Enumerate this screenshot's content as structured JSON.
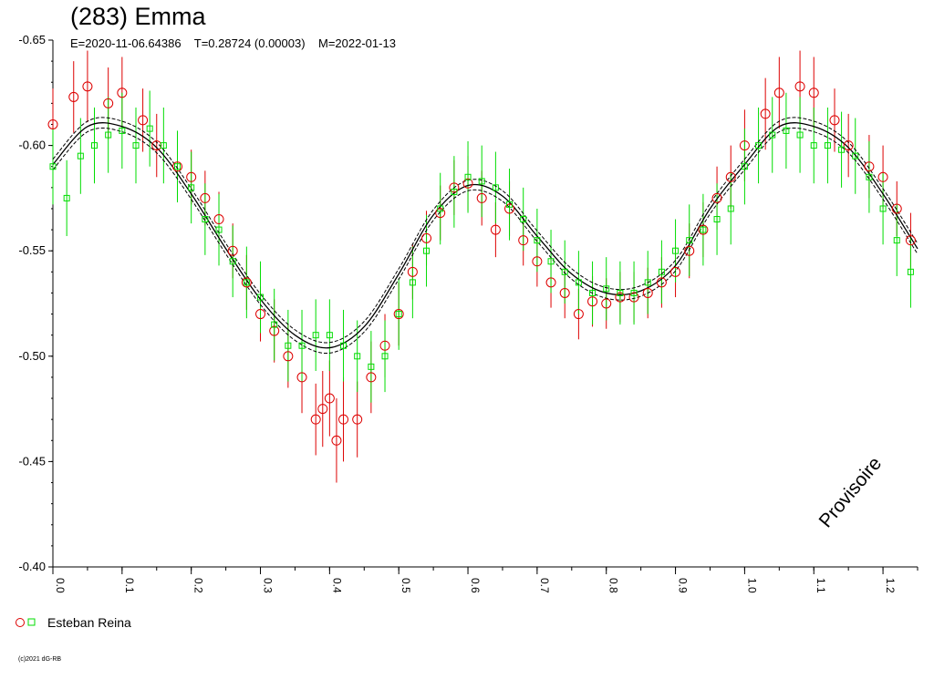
{
  "title": "(283) Emma",
  "subtitle": "E=2020-11-06.64386    T=0.28724 (0.00003)    M=2022-01-13",
  "watermark": "Provisoire",
  "copyright": "(c)2021 dG-RB",
  "colors": {
    "observer_a": "#dd0000",
    "observer_b": "#00dd00",
    "fit": "#000000"
  },
  "chart_data": {
    "type": "scatter",
    "title": "(283) Emma",
    "xlabel": "",
    "ylabel": "",
    "xlim": [
      0,
      1.25
    ],
    "ylim": [
      -0.65,
      -0.4
    ],
    "x_ticks": [
      0.0,
      0.1,
      0.2,
      0.3,
      0.4,
      0.5,
      0.6,
      0.7,
      0.8,
      0.9,
      1.0,
      1.1,
      1.2
    ],
    "x_tick_labels": [
      "0.0",
      "0.1",
      "0.2",
      "0.3",
      "0.4",
      "0.5",
      "0.6",
      "0.7",
      "0.8",
      "0.9",
      "1.0",
      "1.1",
      "1.2"
    ],
    "y_ticks": [
      -0.65,
      -0.6,
      -0.55,
      -0.5,
      -0.45,
      -0.4
    ],
    "y_tick_labels": [
      "-0.65",
      "-0.60",
      "-0.55",
      "-0.50",
      "-0.45",
      "-0.40"
    ],
    "grid": false,
    "legend": {
      "position": "bottom-left",
      "label": "Esteban Reina"
    },
    "period_phase": 1.0,
    "fit_curve": {
      "x": [
        0.0,
        0.05,
        0.1,
        0.15,
        0.2,
        0.25,
        0.3,
        0.35,
        0.4,
        0.45,
        0.5,
        0.55,
        0.6,
        0.65,
        0.7,
        0.75,
        0.8,
        0.85,
        0.9,
        0.95,
        1.0,
        1.05,
        1.1,
        1.15,
        1.2,
        1.25
      ],
      "y": [
        -0.591,
        -0.609,
        -0.609,
        -0.599,
        -0.577,
        -0.551,
        -0.527,
        -0.51,
        -0.504,
        -0.514,
        -0.539,
        -0.567,
        -0.581,
        -0.576,
        -0.557,
        -0.539,
        -0.53,
        -0.531,
        -0.543,
        -0.57,
        -0.591,
        -0.609,
        -0.609,
        -0.599,
        -0.577,
        -0.551
      ],
      "band": 0.0025
    },
    "series": [
      {
        "name": "Esteban Reina",
        "marker": "circle",
        "color": "#dd0000",
        "x": [
          0.0,
          0.03,
          0.05,
          0.08,
          0.1,
          0.13,
          0.15,
          0.18,
          0.2,
          0.22,
          0.24,
          0.26,
          0.28,
          0.3,
          0.32,
          0.34,
          0.36,
          0.38,
          0.39,
          0.4,
          0.41,
          0.42,
          0.44,
          0.46,
          0.48,
          0.5,
          0.52,
          0.54,
          0.56,
          0.58,
          0.6,
          0.62,
          0.64,
          0.66,
          0.68,
          0.7,
          0.72,
          0.74,
          0.76,
          0.78,
          0.8,
          0.82,
          0.84,
          0.86,
          0.88,
          0.9,
          0.92,
          0.94,
          0.96,
          0.98,
          1.0,
          1.03,
          1.05,
          1.08,
          1.1,
          1.13,
          1.15,
          1.18,
          1.2,
          1.22,
          1.24
        ],
        "y": [
          -0.61,
          -0.623,
          -0.628,
          -0.62,
          -0.625,
          -0.612,
          -0.6,
          -0.59,
          -0.585,
          -0.575,
          -0.565,
          -0.55,
          -0.535,
          -0.52,
          -0.512,
          -0.5,
          -0.49,
          -0.47,
          -0.475,
          -0.48,
          -0.46,
          -0.47,
          -0.47,
          -0.49,
          -0.505,
          -0.52,
          -0.54,
          -0.556,
          -0.568,
          -0.58,
          -0.582,
          -0.575,
          -0.56,
          -0.57,
          -0.555,
          -0.545,
          -0.535,
          -0.53,
          -0.52,
          -0.526,
          -0.525,
          -0.528,
          -0.528,
          -0.53,
          -0.535,
          -0.54,
          -0.55,
          -0.56,
          -0.575,
          -0.585,
          -0.6,
          -0.615,
          -0.625,
          -0.628,
          -0.625,
          -0.612,
          -0.6,
          -0.59,
          -0.585,
          -0.57,
          -0.555
        ],
        "err": [
          0.017,
          0.017,
          0.017,
          0.017,
          0.017,
          0.015,
          0.015,
          0.015,
          0.013,
          0.013,
          0.013,
          0.013,
          0.013,
          0.013,
          0.015,
          0.015,
          0.017,
          0.017,
          0.018,
          0.018,
          0.02,
          0.02,
          0.018,
          0.017,
          0.015,
          0.015,
          0.013,
          0.013,
          0.013,
          0.013,
          0.013,
          0.013,
          0.013,
          0.013,
          0.012,
          0.012,
          0.012,
          0.012,
          0.012,
          0.012,
          0.012,
          0.012,
          0.012,
          0.012,
          0.012,
          0.012,
          0.013,
          0.013,
          0.015,
          0.015,
          0.017,
          0.017,
          0.017,
          0.017,
          0.017,
          0.015,
          0.015,
          0.015,
          0.015,
          0.013,
          0.013
        ]
      },
      {
        "name": "Esteban Reina",
        "marker": "square",
        "color": "#00dd00",
        "x": [
          0.0,
          0.02,
          0.04,
          0.06,
          0.08,
          0.1,
          0.12,
          0.14,
          0.16,
          0.18,
          0.2,
          0.22,
          0.24,
          0.26,
          0.28,
          0.3,
          0.32,
          0.34,
          0.36,
          0.38,
          0.4,
          0.42,
          0.44,
          0.46,
          0.48,
          0.5,
          0.52,
          0.54,
          0.56,
          0.58,
          0.6,
          0.62,
          0.64,
          0.66,
          0.68,
          0.7,
          0.72,
          0.74,
          0.76,
          0.78,
          0.8,
          0.82,
          0.84,
          0.86,
          0.88,
          0.9,
          0.92,
          0.94,
          0.96,
          0.98,
          1.0,
          1.02,
          1.04,
          1.06,
          1.08,
          1.1,
          1.12,
          1.14,
          1.16,
          1.18,
          1.2,
          1.22,
          1.24
        ],
        "y": [
          -0.59,
          -0.575,
          -0.595,
          -0.6,
          -0.605,
          -0.607,
          -0.6,
          -0.608,
          -0.6,
          -0.59,
          -0.58,
          -0.565,
          -0.56,
          -0.545,
          -0.535,
          -0.528,
          -0.515,
          -0.505,
          -0.505,
          -0.51,
          -0.51,
          -0.505,
          -0.5,
          -0.495,
          -0.5,
          -0.52,
          -0.535,
          -0.55,
          -0.57,
          -0.578,
          -0.585,
          -0.583,
          -0.58,
          -0.572,
          -0.565,
          -0.555,
          -0.545,
          -0.54,
          -0.535,
          -0.53,
          -0.532,
          -0.53,
          -0.53,
          -0.535,
          -0.54,
          -0.55,
          -0.555,
          -0.56,
          -0.565,
          -0.57,
          -0.59,
          -0.6,
          -0.605,
          -0.607,
          -0.605,
          -0.6,
          -0.6,
          -0.598,
          -0.595,
          -0.585,
          -0.57,
          -0.555,
          -0.54
        ],
        "err": [
          0.018,
          0.018,
          0.018,
          0.018,
          0.018,
          0.018,
          0.018,
          0.018,
          0.018,
          0.017,
          0.017,
          0.017,
          0.017,
          0.017,
          0.017,
          0.017,
          0.017,
          0.017,
          0.017,
          0.017,
          0.017,
          0.017,
          0.017,
          0.017,
          0.017,
          0.017,
          0.017,
          0.017,
          0.017,
          0.017,
          0.017,
          0.017,
          0.017,
          0.017,
          0.015,
          0.015,
          0.015,
          0.015,
          0.015,
          0.015,
          0.015,
          0.015,
          0.015,
          0.015,
          0.015,
          0.015,
          0.017,
          0.017,
          0.017,
          0.017,
          0.018,
          0.018,
          0.018,
          0.018,
          0.018,
          0.018,
          0.018,
          0.018,
          0.018,
          0.017,
          0.017,
          0.017,
          0.017
        ]
      }
    ]
  }
}
